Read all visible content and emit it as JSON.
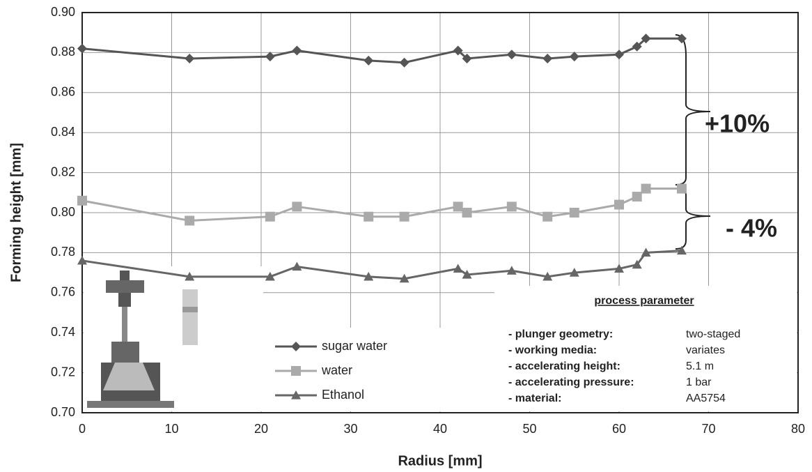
{
  "chart_data": {
    "type": "line",
    "x_label": "Radius [mm]",
    "y_label": "Forming height [mm]",
    "x": [
      0,
      12,
      21,
      24,
      32,
      36,
      42,
      43,
      48,
      52,
      55,
      60,
      62,
      63,
      67
    ],
    "series": [
      {
        "name": "sugar water",
        "color": "#555555",
        "marker": "diamond",
        "values": [
          0.882,
          0.877,
          0.878,
          0.881,
          0.876,
          0.875,
          0.881,
          0.877,
          0.879,
          0.877,
          0.878,
          0.879,
          0.883,
          0.887,
          0.887
        ]
      },
      {
        "name": "water",
        "color": "#aaaaaa",
        "marker": "square",
        "values": [
          0.806,
          0.796,
          0.798,
          0.803,
          0.798,
          0.798,
          0.803,
          0.8,
          0.803,
          0.798,
          0.8,
          0.804,
          0.808,
          0.812,
          0.812
        ]
      },
      {
        "name": "Ethanol",
        "color": "#666666",
        "marker": "triangle",
        "values": [
          0.776,
          0.768,
          0.768,
          0.773,
          0.768,
          0.767,
          0.772,
          0.769,
          0.771,
          0.768,
          0.77,
          0.772,
          0.774,
          0.78,
          0.781
        ]
      }
    ],
    "xlim": [
      0,
      80
    ],
    "xticks": [
      0,
      10,
      20,
      30,
      40,
      50,
      60,
      70,
      80
    ],
    "ylim": [
      0.7,
      0.9
    ],
    "yticks": [
      {
        "value": 0.7,
        "label": "0.70"
      },
      0.72,
      0.74,
      0.76,
      0.78,
      {
        "value": 0.8,
        "label": "0.80"
      },
      0.82,
      0.84,
      0.86,
      0.88,
      {
        "value": 0.9,
        "label": "0.90"
      }
    ],
    "grid": true,
    "annotations": [
      "+10%",
      "- 4%"
    ],
    "parameter_table": {
      "title": "process parameter",
      "rows": [
        [
          "- plunger geometry:",
          "two-staged"
        ],
        [
          "- working media:",
          "variates"
        ],
        [
          "- accelerating height:",
          "5.1 m"
        ],
        [
          "- accelerating pressure:",
          "1 bar"
        ],
        [
          "- material:",
          "AA5754"
        ]
      ]
    }
  }
}
